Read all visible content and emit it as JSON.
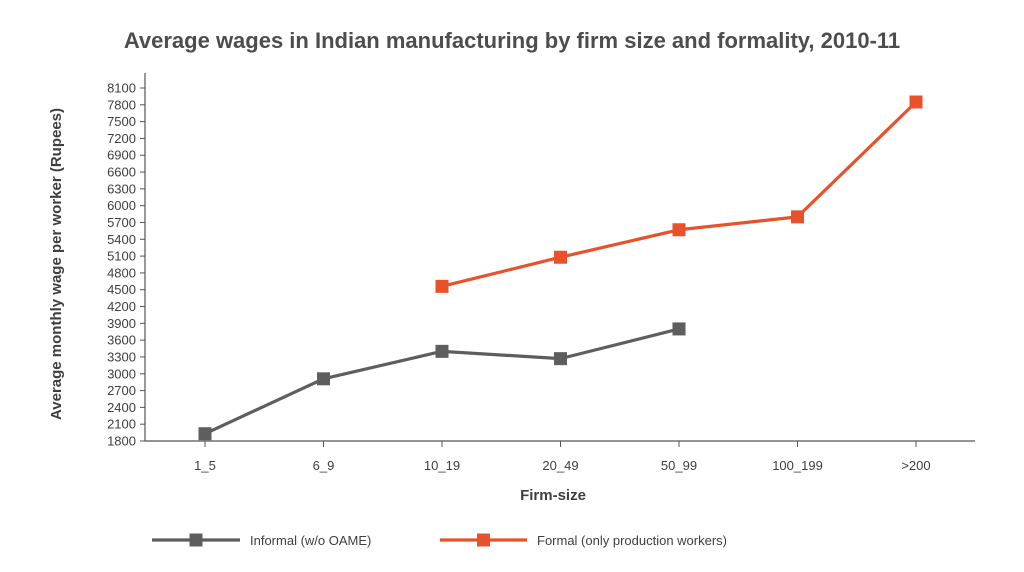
{
  "chart_data": {
    "type": "line",
    "title": "Average wages in Indian manufacturing by firm size and formality, 2010-11",
    "xlabel": "Firm-size",
    "ylabel": "Average monthly wage per worker (Rupees)",
    "categories": [
      "1_5",
      "6_9",
      "10_19",
      "20_49",
      "50_99",
      "100_199",
      ">200"
    ],
    "ylim": [
      1800,
      8100
    ],
    "yticks": [
      1800,
      2100,
      2400,
      2700,
      3000,
      3300,
      3600,
      3900,
      4200,
      4500,
      4800,
      5100,
      5400,
      5700,
      6000,
      6300,
      6600,
      6900,
      7200,
      7500,
      7800,
      8100
    ],
    "series": [
      {
        "name": "Informal (w/o OAME)",
        "color": "#5e5e5f",
        "values": [
          1930,
          2910,
          3400,
          3270,
          3800,
          null,
          null
        ]
      },
      {
        "name": "Formal (only production workers)",
        "color": "#e8522b",
        "values": [
          null,
          null,
          4560,
          5080,
          5570,
          5800,
          7850
        ]
      }
    ],
    "grid": false,
    "legend_position": "bottom"
  }
}
